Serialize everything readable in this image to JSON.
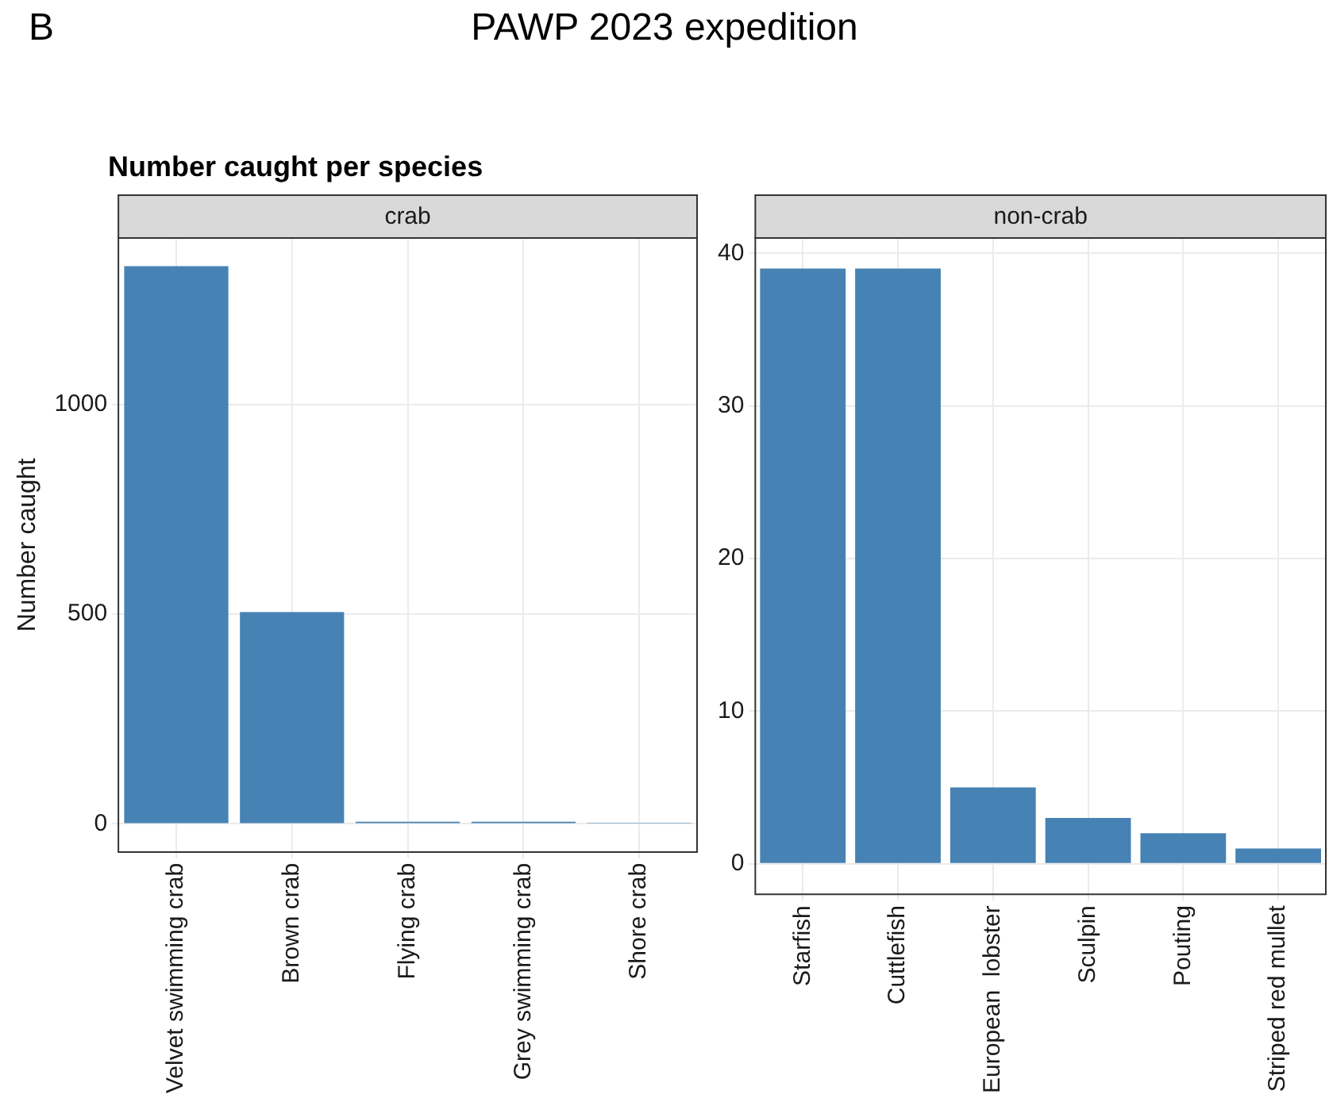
{
  "chart_data": [
    {
      "type": "bar",
      "title": "crab",
      "ylabel": "Number caught",
      "annotations": [
        "B",
        "PAWP 2023 expedition",
        "Number caught per species"
      ],
      "categories": [
        "Velvet swimming crab",
        "Brown crab",
        "Flying crab",
        "Grey swimming crab",
        "Shore crab"
      ],
      "values": [
        1330,
        505,
        5,
        5,
        1
      ],
      "color": "#4682b4",
      "ylim": [
        -67,
        1397
      ],
      "yticks": [
        0,
        500,
        1000
      ],
      "grid": true
    },
    {
      "type": "bar",
      "title": "non-crab",
      "categories": [
        "Starfish",
        "Cuttlefish",
        "European  lobster",
        "Sculpin",
        "Pouting",
        "Striped red mullet"
      ],
      "values": [
        39,
        39,
        5,
        3,
        2,
        1
      ],
      "color": "#4682b4",
      "ylim": [
        -2,
        41
      ],
      "yticks": [
        0,
        10,
        20,
        30,
        40
      ],
      "grid": true
    }
  ]
}
